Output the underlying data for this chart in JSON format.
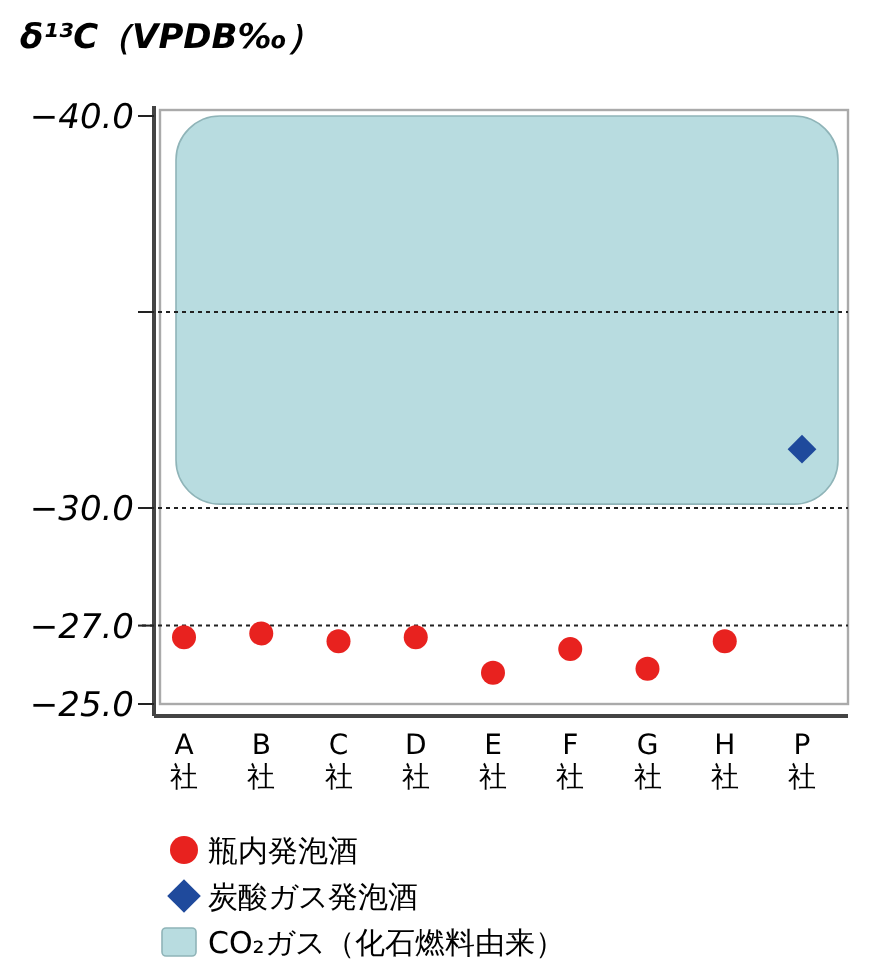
{
  "chart_data": {
    "type": "scatter",
    "ylabel": "δ¹³C（VPDB‰）",
    "categories": [
      "A社",
      "B社",
      "C社",
      "D社",
      "E社",
      "F社",
      "G社",
      "H社",
      "P社"
    ],
    "series": [
      {
        "name": "瓶内発泡酒",
        "color": "#e8221f",
        "marker": "circle",
        "values": [
          -26.7,
          -26.8,
          -26.6,
          -26.7,
          -25.8,
          -26.4,
          -25.9,
          -26.6,
          null
        ]
      },
      {
        "name": "炭酸ガス発泡酒",
        "color": "#1f4a9c",
        "marker": "diamond",
        "values": [
          null,
          null,
          null,
          null,
          null,
          null,
          null,
          null,
          -31.5
        ]
      }
    ],
    "ylim": [
      -25,
      -40
    ],
    "yticks": [
      {
        "value": -40,
        "label": "−40.0"
      },
      {
        "value": -35,
        "label": null
      },
      {
        "value": -30,
        "label": "−30.0"
      },
      {
        "value": -27,
        "label": "−27.0"
      },
      {
        "value": -25,
        "label": "−25.0"
      }
    ],
    "ref_lines": [
      {
        "axis": "y",
        "value": -35,
        "line_style": "dotted"
      },
      {
        "axis": "y",
        "value": -30,
        "line_style": "dotted"
      },
      {
        "axis": "y",
        "value": -27,
        "line_style": "dotted"
      }
    ],
    "bands": [
      {
        "axis": "y",
        "from": -40,
        "to": -30.1,
        "label": "CO₂ガス（化石燃料由来）",
        "color": "#b8dce0"
      }
    ],
    "legend": "bottom"
  }
}
